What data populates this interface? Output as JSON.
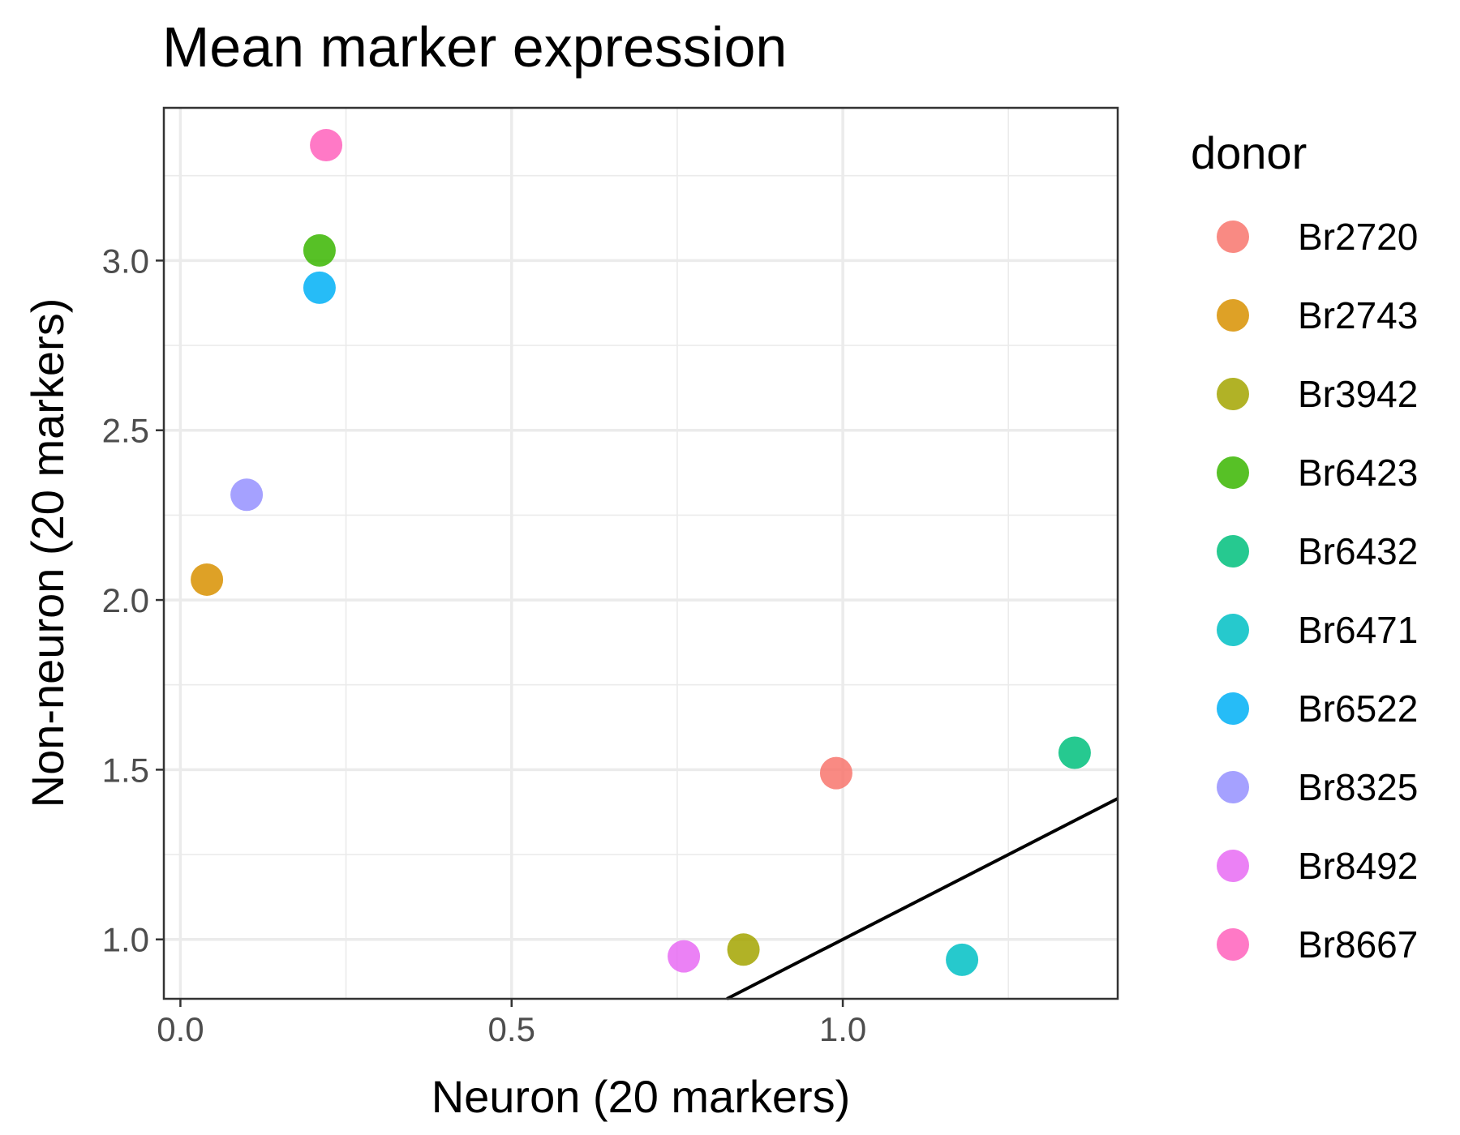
{
  "chart_data": {
    "type": "scatter",
    "title": "Mean marker expression",
    "xlabel": "Neuron (20 markers)",
    "ylabel": "Non-neuron (20 markers)",
    "xlim": [
      -0.025,
      1.415
    ],
    "ylim": [
      0.825,
      3.45
    ],
    "x_ticks": [
      0.0,
      0.5,
      1.0
    ],
    "x_tick_labels": [
      "0.0",
      "0.5",
      "1.0"
    ],
    "y_ticks": [
      1.0,
      1.5,
      2.0,
      2.5,
      3.0
    ],
    "y_tick_labels": [
      "1.0",
      "1.5",
      "2.0",
      "2.5",
      "3.0"
    ],
    "grid": true,
    "reference_line": {
      "slope": 1,
      "intercept": 0
    },
    "legend": {
      "title": "donor",
      "position": "right"
    },
    "series": [
      {
        "name": "Br2720",
        "color": "#F8766D",
        "x": 0.99,
        "y": 1.49
      },
      {
        "name": "Br2743",
        "color": "#D89000",
        "x": 0.04,
        "y": 2.06
      },
      {
        "name": "Br3942",
        "color": "#A3A500",
        "x": 0.85,
        "y": 0.97
      },
      {
        "name": "Br6423",
        "color": "#39B600",
        "x": 0.21,
        "y": 3.03
      },
      {
        "name": "Br6432",
        "color": "#00BF7D",
        "x": 1.35,
        "y": 1.55
      },
      {
        "name": "Br6471",
        "color": "#00BFC4",
        "x": 1.18,
        "y": 0.94
      },
      {
        "name": "Br6522",
        "color": "#00B0F6",
        "x": 0.21,
        "y": 2.92
      },
      {
        "name": "Br8325",
        "color": "#9590FF",
        "x": 0.1,
        "y": 2.31
      },
      {
        "name": "Br8492",
        "color": "#E76BF3",
        "x": 0.76,
        "y": 0.95
      },
      {
        "name": "Br8667",
        "color": "#FF62BC",
        "x": 0.22,
        "y": 3.34
      }
    ]
  }
}
